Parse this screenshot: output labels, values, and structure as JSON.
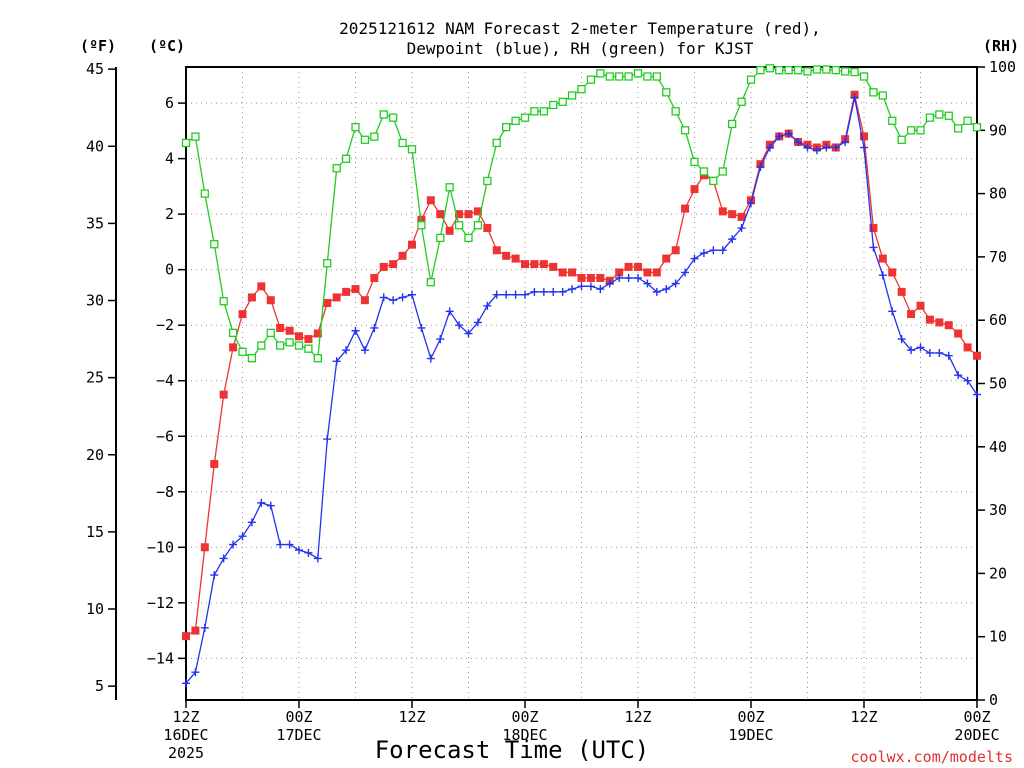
{
  "chart_data": {
    "type": "line",
    "title": [
      "2025121612 NAM Forecast 2-meter Temperature (red),",
      "Dewpoint (blue), RH (green) for KJST"
    ],
    "xlabel": "Forecast Time (UTC)",
    "left_outer_unit": "(ºF)",
    "left_inner_unit": "(ºC)",
    "right_unit": "(RH)",
    "credit": "coolwx.com/modelts",
    "grid": true,
    "x_unit": "forecast hour",
    "xlim": [
      0,
      84
    ],
    "x_ticks": [
      {
        "hour": 0,
        "lines": [
          "12Z",
          "16DEC",
          "2025"
        ]
      },
      {
        "hour": 12,
        "lines": [
          "00Z",
          "17DEC"
        ]
      },
      {
        "hour": 24,
        "lines": [
          "12Z"
        ]
      },
      {
        "hour": 36,
        "lines": [
          "00Z",
          "18DEC"
        ]
      },
      {
        "hour": 48,
        "lines": [
          "12Z"
        ]
      },
      {
        "hour": 60,
        "lines": [
          "00Z",
          "19DEC"
        ]
      },
      {
        "hour": 72,
        "lines": [
          "12Z"
        ]
      },
      {
        "hour": 84,
        "lines": [
          "00Z",
          "20DEC"
        ]
      }
    ],
    "ylim_celsius": [
      -15.5,
      7.3
    ],
    "ylim_rh": [
      0,
      100
    ],
    "celsius_ticks": [
      "6",
      "4",
      "2",
      "0",
      "−2",
      "−4",
      "−6",
      "−8",
      "−10",
      "−12",
      "−14"
    ],
    "fahrenheit_ticks": [
      "45",
      "40",
      "35",
      "30",
      "25",
      "20",
      "15",
      "10",
      "5"
    ],
    "rh_ticks": [
      "100",
      "90",
      "80",
      "70",
      "60",
      "50",
      "40",
      "30",
      "20",
      "10",
      "0"
    ],
    "colors": {
      "temperature": "#ee3333",
      "dewpoint": "#2233ee",
      "rh": "#22cc22",
      "credit": "#e03030"
    },
    "series": [
      {
        "key": "temperature",
        "marker": "filled-square",
        "values": [
          [
            0,
            -13.2
          ],
          [
            1,
            -13
          ],
          [
            2,
            -10
          ],
          [
            3,
            -7
          ],
          [
            4,
            -4.5
          ],
          [
            5,
            -2.8
          ],
          [
            6,
            -1.6
          ],
          [
            7,
            -1
          ],
          [
            8,
            -0.6
          ],
          [
            9,
            -1.1
          ],
          [
            10,
            -2.1
          ],
          [
            11,
            -2.2
          ],
          [
            12,
            -2.4
          ],
          [
            13,
            -2.5
          ],
          [
            14,
            -2.3
          ],
          [
            15,
            -1.2
          ],
          [
            16,
            -1
          ],
          [
            17,
            -0.8
          ],
          [
            18,
            -0.7
          ],
          [
            19,
            -1.1
          ],
          [
            20,
            -0.3
          ],
          [
            21,
            0.1
          ],
          [
            22,
            0.2
          ],
          [
            23,
            0.5
          ],
          [
            24,
            0.9
          ],
          [
            25,
            1.8
          ],
          [
            26,
            2.5
          ],
          [
            27,
            2
          ],
          [
            28,
            1.4
          ],
          [
            29,
            2
          ],
          [
            30,
            2
          ],
          [
            31,
            2.1
          ],
          [
            32,
            1.5
          ],
          [
            33,
            0.7
          ],
          [
            34,
            0.5
          ],
          [
            35,
            0.4
          ],
          [
            36,
            0.2
          ],
          [
            37,
            0.2
          ],
          [
            38,
            0.2
          ],
          [
            39,
            0.1
          ],
          [
            40,
            -0.1
          ],
          [
            41,
            -0.1
          ],
          [
            42,
            -0.3
          ],
          [
            43,
            -0.3
          ],
          [
            44,
            -0.3
          ],
          [
            45,
            -0.4
          ],
          [
            46,
            -0.1
          ],
          [
            47,
            0.1
          ],
          [
            48,
            0.1
          ],
          [
            49,
            -0.1
          ],
          [
            50,
            -0.1
          ],
          [
            51,
            0.4
          ],
          [
            52,
            0.7
          ],
          [
            53,
            2.2
          ],
          [
            54,
            2.9
          ],
          [
            55,
            3.4
          ],
          [
            56,
            3.2
          ],
          [
            57,
            2.1
          ],
          [
            58,
            2
          ],
          [
            59,
            1.9
          ],
          [
            60,
            2.5
          ],
          [
            61,
            3.8
          ],
          [
            62,
            4.5
          ],
          [
            63,
            4.8
          ],
          [
            64,
            4.9
          ],
          [
            65,
            4.6
          ],
          [
            66,
            4.5
          ],
          [
            67,
            4.4
          ],
          [
            68,
            4.5
          ],
          [
            69,
            4.4
          ],
          [
            70,
            4.7
          ],
          [
            71,
            6.3
          ],
          [
            72,
            4.8
          ],
          [
            73,
            1.5
          ],
          [
            74,
            0.4
          ],
          [
            75,
            -0.1
          ],
          [
            76,
            -0.8
          ],
          [
            77,
            -1.6
          ],
          [
            78,
            -1.3
          ],
          [
            79,
            -1.8
          ],
          [
            80,
            -1.9
          ],
          [
            81,
            -2
          ],
          [
            82,
            -2.3
          ],
          [
            83,
            -2.8
          ],
          [
            84,
            -3.1
          ]
        ]
      },
      {
        "key": "dewpoint",
        "marker": "plus",
        "values": [
          [
            0,
            -14.9
          ],
          [
            1,
            -14.5
          ],
          [
            2,
            -12.9
          ],
          [
            3,
            -11
          ],
          [
            4,
            -10.4
          ],
          [
            5,
            -9.9
          ],
          [
            6,
            -9.6
          ],
          [
            7,
            -9.1
          ],
          [
            8,
            -8.4
          ],
          [
            9,
            -8.5
          ],
          [
            10,
            -9.9
          ],
          [
            11,
            -9.9
          ],
          [
            12,
            -10.1
          ],
          [
            13,
            -10.2
          ],
          [
            14,
            -10.4
          ],
          [
            15,
            -6.1
          ],
          [
            16,
            -3.3
          ],
          [
            17,
            -2.9
          ],
          [
            18,
            -2.2
          ],
          [
            19,
            -2.9
          ],
          [
            20,
            -2.1
          ],
          [
            21,
            -1
          ],
          [
            22,
            -1.1
          ],
          [
            23,
            -1
          ],
          [
            24,
            -0.9
          ],
          [
            25,
            -2.1
          ],
          [
            26,
            -3.2
          ],
          [
            27,
            -2.5
          ],
          [
            28,
            -1.5
          ],
          [
            29,
            -2
          ],
          [
            30,
            -2.3
          ],
          [
            31,
            -1.9
          ],
          [
            32,
            -1.3
          ],
          [
            33,
            -0.9
          ],
          [
            34,
            -0.9
          ],
          [
            35,
            -0.9
          ],
          [
            36,
            -0.9
          ],
          [
            37,
            -0.8
          ],
          [
            38,
            -0.8
          ],
          [
            39,
            -0.8
          ],
          [
            40,
            -0.8
          ],
          [
            41,
            -0.7
          ],
          [
            42,
            -0.6
          ],
          [
            43,
            -0.6
          ],
          [
            44,
            -0.7
          ],
          [
            45,
            -0.5
          ],
          [
            46,
            -0.3
          ],
          [
            47,
            -0.3
          ],
          [
            48,
            -0.3
          ],
          [
            49,
            -0.5
          ],
          [
            50,
            -0.8
          ],
          [
            51,
            -0.7
          ],
          [
            52,
            -0.5
          ],
          [
            53,
            -0.1
          ],
          [
            54,
            0.4
          ],
          [
            55,
            0.6
          ],
          [
            56,
            0.7
          ],
          [
            57,
            0.7
          ],
          [
            58,
            1.1
          ],
          [
            59,
            1.5
          ],
          [
            60,
            2.4
          ],
          [
            61,
            3.7
          ],
          [
            62,
            4.4
          ],
          [
            63,
            4.8
          ],
          [
            64,
            4.9
          ],
          [
            65,
            4.6
          ],
          [
            66,
            4.4
          ],
          [
            67,
            4.3
          ],
          [
            68,
            4.4
          ],
          [
            69,
            4.4
          ],
          [
            70,
            4.6
          ],
          [
            71,
            6.2
          ],
          [
            72,
            4.4
          ],
          [
            73,
            0.8
          ],
          [
            74,
            -0.2
          ],
          [
            75,
            -1.5
          ],
          [
            76,
            -2.5
          ],
          [
            77,
            -2.9
          ],
          [
            78,
            -2.8
          ],
          [
            79,
            -3
          ],
          [
            80,
            -3
          ],
          [
            81,
            -3.1
          ],
          [
            82,
            -3.8
          ],
          [
            83,
            -4
          ],
          [
            84,
            -4.5
          ]
        ]
      },
      {
        "key": "rh",
        "marker": "open-square",
        "values": [
          [
            0,
            88
          ],
          [
            1,
            89
          ],
          [
            2,
            80
          ],
          [
            3,
            72
          ],
          [
            4,
            63
          ],
          [
            5,
            58
          ],
          [
            6,
            55
          ],
          [
            7,
            54
          ],
          [
            8,
            56
          ],
          [
            9,
            58
          ],
          [
            10,
            56
          ],
          [
            11,
            56.5
          ],
          [
            12,
            56
          ],
          [
            13,
            55.5
          ],
          [
            14,
            54
          ],
          [
            15,
            69
          ],
          [
            16,
            84
          ],
          [
            17,
            85.5
          ],
          [
            18,
            90.5
          ],
          [
            19,
            88.5
          ],
          [
            20,
            89
          ],
          [
            21,
            92.5
          ],
          [
            22,
            92
          ],
          [
            23,
            88
          ],
          [
            24,
            87
          ],
          [
            25,
            75
          ],
          [
            26,
            66
          ],
          [
            27,
            73
          ],
          [
            28,
            81
          ],
          [
            29,
            75
          ],
          [
            30,
            73
          ],
          [
            31,
            75
          ],
          [
            32,
            82
          ],
          [
            33,
            88
          ],
          [
            34,
            90.5
          ],
          [
            35,
            91.5
          ],
          [
            36,
            92
          ],
          [
            37,
            93
          ],
          [
            38,
            93
          ],
          [
            39,
            94
          ],
          [
            40,
            94.5
          ],
          [
            41,
            95.5
          ],
          [
            42,
            96.5
          ],
          [
            43,
            98
          ],
          [
            44,
            99
          ],
          [
            45,
            98.5
          ],
          [
            46,
            98.5
          ],
          [
            47,
            98.5
          ],
          [
            48,
            99
          ],
          [
            49,
            98.5
          ],
          [
            50,
            98.5
          ],
          [
            51,
            96
          ],
          [
            52,
            93
          ],
          [
            53,
            90
          ],
          [
            54,
            85
          ],
          [
            55,
            83.5
          ],
          [
            56,
            82
          ],
          [
            57,
            83.5
          ],
          [
            58,
            91
          ],
          [
            59,
            94.5
          ],
          [
            60,
            98
          ],
          [
            61,
            99.5
          ],
          [
            62,
            99.8
          ],
          [
            63,
            99.5
          ],
          [
            64,
            99.5
          ],
          [
            65,
            99.5
          ],
          [
            66,
            99.3
          ],
          [
            67,
            99.6
          ],
          [
            68,
            99.6
          ],
          [
            69,
            99.5
          ],
          [
            70,
            99.3
          ],
          [
            71,
            99.2
          ],
          [
            72,
            98.5
          ],
          [
            73,
            96
          ],
          [
            74,
            95.5
          ],
          [
            75,
            91.5
          ],
          [
            76,
            88.5
          ],
          [
            77,
            90
          ],
          [
            78,
            90
          ],
          [
            79,
            92
          ],
          [
            80,
            92.5
          ],
          [
            81,
            92.3
          ],
          [
            82,
            90.3
          ],
          [
            83,
            91.5
          ],
          [
            84,
            90.5
          ]
        ]
      }
    ]
  }
}
